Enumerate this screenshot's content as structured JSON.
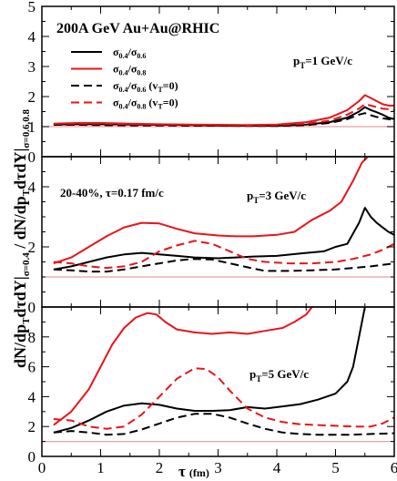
{
  "figure": {
    "ylabel_main": "dN/dp",
    "ylabel_sub1": "T",
    "ylabel_mid": "dτdY",
    "ylabel_bar": "|",
    "ylabel_sub2": "σ=0.4",
    "ylabel_slash": " / dN/dp",
    "ylabel_sub3": "T",
    "ylabel_mid2": "dτdY",
    "ylabel_bar2": "|",
    "ylabel_sub4": "σ=0.6,0.8",
    "xlabel_main": "τ",
    "xlabel_unit": "(fm)"
  },
  "colors": {
    "black": "#000000",
    "red": "#e8141a",
    "reference_line": "#e8a0a0"
  },
  "legend": [
    {
      "text": "σ",
      "sub1": "0.4",
      "mid": "/σ",
      "sub2": "0.6",
      "suffix": "",
      "suffix_sub": "",
      "suffix_end": "",
      "color": "#000000",
      "dash": false
    },
    {
      "text": "σ",
      "sub1": "0.4",
      "mid": "/σ",
      "sub2": "0.8",
      "suffix": "",
      "suffix_sub": "",
      "suffix_end": "",
      "color": "#e8141a",
      "dash": false
    },
    {
      "text": "σ",
      "sub1": "0.4",
      "mid": "/σ",
      "sub2": "0.6",
      "suffix": " (v",
      "suffix_sub": "T",
      "suffix_end": "=0)",
      "color": "#000000",
      "dash": true
    },
    {
      "text": "σ",
      "sub1": "0.4",
      "mid": "/σ",
      "sub2": "0.8",
      "suffix": " (v",
      "suffix_sub": "T",
      "suffix_end": "=0)",
      "color": "#e8141a",
      "dash": true
    }
  ],
  "chart_data": [
    {
      "type": "line",
      "panel": "top",
      "title": "200A GeV Au+Au@RHIC",
      "annotation": {
        "main": "p",
        "sub": "T",
        "rest": "=1 GeV/c"
      },
      "xlim": [
        0,
        6
      ],
      "ylim": [
        0,
        5
      ],
      "yticks": [
        "0",
        "1",
        "2",
        "3",
        "4",
        "5"
      ],
      "xticks": [],
      "reference_y": 1,
      "series": [
        {
          "color": "#000000",
          "dash": false,
          "x": [
            0.2,
            0.6,
            1.0,
            1.5,
            2.0,
            2.5,
            3.0,
            3.5,
            4.0,
            4.5,
            4.9,
            5.2,
            5.4,
            5.5,
            5.6,
            5.7,
            5.8,
            5.9,
            6.0
          ],
          "y": [
            1.07,
            1.08,
            1.08,
            1.07,
            1.06,
            1.05,
            1.04,
            1.03,
            1.03,
            1.07,
            1.15,
            1.3,
            1.5,
            1.65,
            1.55,
            1.48,
            1.4,
            1.3,
            1.25
          ]
        },
        {
          "color": "#e8141a",
          "dash": false,
          "x": [
            0.2,
            0.6,
            1.0,
            1.5,
            2.0,
            2.5,
            3.0,
            3.5,
            4.0,
            4.5,
            4.9,
            5.2,
            5.4,
            5.5,
            5.6,
            5.7,
            5.8,
            5.9,
            6.0
          ],
          "y": [
            1.1,
            1.12,
            1.12,
            1.1,
            1.08,
            1.07,
            1.06,
            1.05,
            1.07,
            1.15,
            1.3,
            1.55,
            1.85,
            2.05,
            1.95,
            1.85,
            1.75,
            1.7,
            1.7
          ]
        },
        {
          "color": "#000000",
          "dash": true,
          "x": [
            0.2,
            0.6,
            1.0,
            1.5,
            2.0,
            2.5,
            3.0,
            3.5,
            4.0,
            4.5,
            4.9,
            5.2,
            5.4,
            5.5,
            5.6,
            5.7,
            5.8,
            5.9,
            6.0
          ],
          "y": [
            1.06,
            1.06,
            1.05,
            1.04,
            1.04,
            1.03,
            1.03,
            1.02,
            1.02,
            1.05,
            1.12,
            1.25,
            1.4,
            1.45,
            1.38,
            1.32,
            1.28,
            1.25,
            1.22
          ]
        },
        {
          "color": "#e8141a",
          "dash": true,
          "x": [
            0.2,
            0.6,
            1.0,
            1.5,
            2.0,
            2.5,
            3.0,
            3.5,
            4.0,
            4.5,
            4.9,
            5.2,
            5.4,
            5.5,
            5.6,
            5.7,
            5.8,
            5.9,
            6.0
          ],
          "y": [
            1.09,
            1.1,
            1.1,
            1.08,
            1.07,
            1.06,
            1.05,
            1.04,
            1.05,
            1.1,
            1.2,
            1.4,
            1.6,
            1.75,
            1.7,
            1.65,
            1.6,
            1.58,
            1.55
          ]
        }
      ]
    },
    {
      "type": "line",
      "panel": "middle",
      "title": "20-40%, τ=0.17 fm/c",
      "annotation": {
        "main": "p",
        "sub": "T",
        "rest": "=3 GeV/c"
      },
      "xlim": [
        0,
        6
      ],
      "ylim": [
        0,
        5
      ],
      "yticks": [
        "0",
        "2",
        "4"
      ],
      "xticks": [],
      "reference_y": 1,
      "series": [
        {
          "color": "#000000",
          "dash": false,
          "x": [
            0.2,
            0.5,
            0.8,
            1.1,
            1.4,
            1.7,
            2.0,
            2.3,
            2.6,
            3.0,
            3.3,
            3.6,
            4.0,
            4.4,
            4.8,
            5.0,
            5.2,
            5.4,
            5.5,
            5.6,
            5.7,
            5.8,
            5.9,
            6.0
          ],
          "y": [
            1.25,
            1.35,
            1.5,
            1.65,
            1.75,
            1.8,
            1.75,
            1.7,
            1.65,
            1.62,
            1.65,
            1.68,
            1.7,
            1.78,
            1.85,
            2.0,
            2.1,
            2.8,
            3.3,
            3.0,
            2.8,
            2.65,
            2.5,
            2.4
          ]
        },
        {
          "color": "#e8141a",
          "dash": false,
          "x": [
            0.2,
            0.5,
            0.8,
            1.1,
            1.4,
            1.7,
            2.0,
            2.3,
            2.6,
            3.0,
            3.3,
            3.6,
            4.0,
            4.3,
            4.6,
            4.9,
            5.1,
            5.3,
            5.45,
            5.55
          ],
          "y": [
            1.45,
            1.65,
            2.0,
            2.35,
            2.65,
            2.8,
            2.78,
            2.6,
            2.45,
            2.38,
            2.35,
            2.35,
            2.4,
            2.5,
            2.9,
            3.2,
            3.5,
            4.2,
            4.8,
            5.0
          ]
        },
        {
          "color": "#000000",
          "dash": true,
          "x": [
            0.2,
            0.5,
            0.8,
            1.1,
            1.4,
            1.7,
            2.0,
            2.3,
            2.6,
            2.9,
            3.2,
            3.5,
            3.8,
            4.2,
            4.6,
            5.0,
            5.3,
            5.6,
            5.8,
            6.0
          ],
          "y": [
            1.25,
            1.22,
            1.18,
            1.18,
            1.25,
            1.35,
            1.45,
            1.55,
            1.6,
            1.58,
            1.45,
            1.32,
            1.2,
            1.2,
            1.22,
            1.25,
            1.3,
            1.35,
            1.4,
            1.45
          ]
        },
        {
          "color": "#e8141a",
          "dash": true,
          "x": [
            0.2,
            0.5,
            0.8,
            1.1,
            1.4,
            1.7,
            2.0,
            2.3,
            2.6,
            2.9,
            3.2,
            3.5,
            3.8,
            4.2,
            4.6,
            5.0,
            5.3,
            5.6,
            5.8,
            6.0
          ],
          "y": [
            1.5,
            1.45,
            1.35,
            1.3,
            1.35,
            1.5,
            1.85,
            2.05,
            2.2,
            2.1,
            1.85,
            1.6,
            1.5,
            1.45,
            1.45,
            1.5,
            1.6,
            1.75,
            1.9,
            2.1
          ]
        }
      ]
    },
    {
      "type": "line",
      "panel": "bottom",
      "title": "",
      "annotation": {
        "main": "p",
        "sub": "T",
        "rest": "=5 GeV/c"
      },
      "xlim": [
        0,
        6
      ],
      "ylim": [
        0,
        10
      ],
      "yticks": [
        "0",
        "2",
        "4",
        "6",
        "8",
        "10"
      ],
      "xticks": [
        "0",
        "1",
        "2",
        "3",
        "4",
        "5",
        "6"
      ],
      "reference_y": 1,
      "series": [
        {
          "color": "#000000",
          "dash": false,
          "x": [
            0.2,
            0.5,
            0.8,
            1.1,
            1.4,
            1.7,
            2.0,
            2.3,
            2.6,
            2.9,
            3.2,
            3.5,
            3.8,
            4.1,
            4.4,
            4.7,
            5.0,
            5.2,
            5.3,
            5.4,
            5.45,
            5.5
          ],
          "y": [
            1.6,
            1.9,
            2.4,
            3.0,
            3.4,
            3.55,
            3.45,
            3.2,
            3.05,
            3.05,
            3.1,
            3.3,
            3.2,
            3.35,
            3.5,
            3.8,
            4.2,
            5.0,
            6.0,
            8.0,
            9.0,
            10.0
          ]
        },
        {
          "color": "#e8141a",
          "dash": false,
          "x": [
            0.2,
            0.5,
            0.8,
            1.0,
            1.2,
            1.4,
            1.6,
            1.8,
            1.95,
            2.1,
            2.3,
            2.6,
            2.9,
            3.2,
            3.5,
            3.8,
            4.1,
            4.3,
            4.5,
            4.6
          ],
          "y": [
            2.1,
            3.0,
            4.5,
            6.0,
            7.5,
            8.6,
            9.3,
            9.6,
            9.5,
            9.0,
            8.5,
            8.3,
            8.2,
            8.3,
            8.2,
            8.4,
            8.6,
            9.0,
            9.5,
            10.0
          ]
        },
        {
          "color": "#000000",
          "dash": true,
          "x": [
            0.2,
            0.5,
            0.8,
            1.1,
            1.4,
            1.7,
            2.0,
            2.3,
            2.6,
            2.9,
            3.2,
            3.5,
            3.8,
            4.1,
            4.4,
            4.7,
            5.0,
            5.3,
            5.6,
            6.0
          ],
          "y": [
            1.6,
            1.7,
            1.6,
            1.45,
            1.5,
            1.8,
            2.2,
            2.6,
            2.85,
            2.85,
            2.6,
            2.2,
            1.85,
            1.6,
            1.5,
            1.45,
            1.45,
            1.45,
            1.5,
            1.55
          ]
        },
        {
          "color": "#e8141a",
          "dash": true,
          "x": [
            0.2,
            0.5,
            0.8,
            1.1,
            1.4,
            1.7,
            2.0,
            2.3,
            2.6,
            2.8,
            3.0,
            3.2,
            3.5,
            3.8,
            4.1,
            4.4,
            4.7,
            5.0,
            5.3,
            5.6,
            5.8,
            6.0
          ],
          "y": [
            2.5,
            2.4,
            2.0,
            1.85,
            2.0,
            2.8,
            4.0,
            5.2,
            5.9,
            5.85,
            5.3,
            4.4,
            3.2,
            2.6,
            2.3,
            2.15,
            2.1,
            2.05,
            2.0,
            2.0,
            2.2,
            2.6
          ]
        }
      ]
    }
  ]
}
